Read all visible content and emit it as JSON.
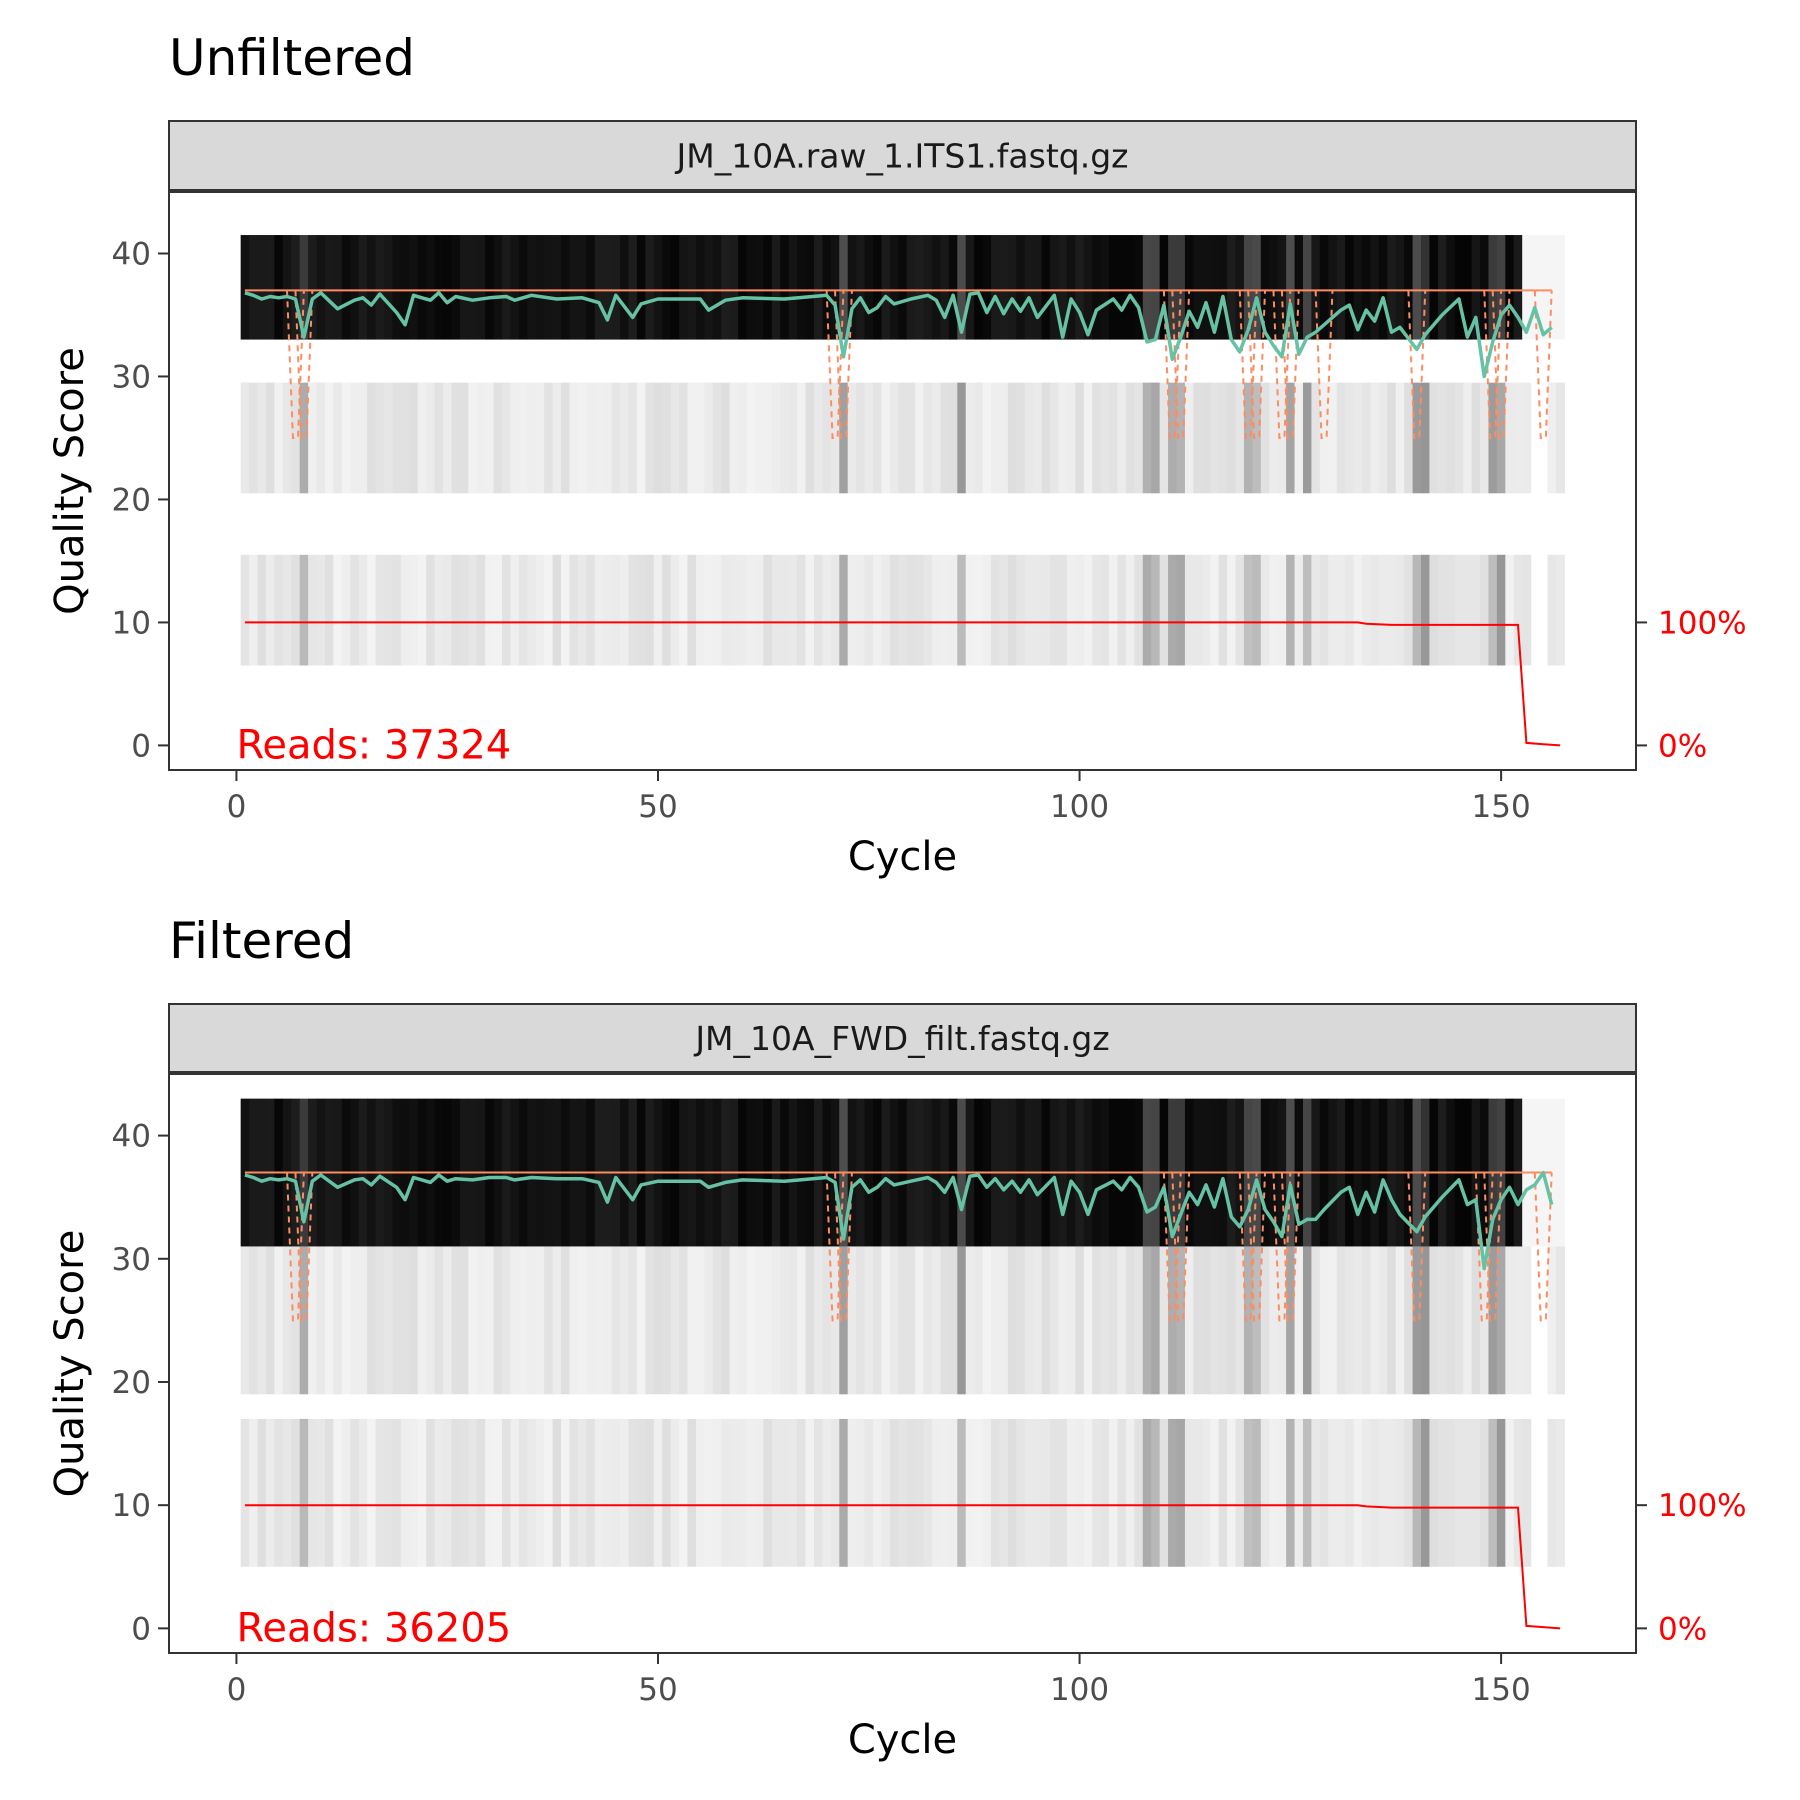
{
  "chart_data": [
    {
      "type": "line",
      "title": "Unfiltered",
      "facet_label": "JM_10A.raw_1.ITS1.fastq.gz",
      "xlabel": "Cycle",
      "ylabel": "Quality Score",
      "xlim": [
        -8,
        166
      ],
      "ylim": [
        -2,
        45
      ],
      "x_ticks": [
        "0",
        "50",
        "100",
        "150"
      ],
      "y_ticks": [
        "0",
        "10",
        "20",
        "30",
        "40"
      ],
      "secondary_axis_ticks": [
        "0%",
        "100%"
      ],
      "annotation": "Reads:  37324",
      "heatmap_bands": [
        [
          33,
          41.5
        ],
        [
          20.5,
          29.5
        ],
        [
          6.5,
          15.5
        ]
      ],
      "cycle_count": 157,
      "dim_cycles": [
        8,
        72,
        86,
        108,
        109,
        111,
        112,
        120,
        121,
        125,
        127,
        140,
        141,
        149,
        150
      ],
      "mean_quality": [
        [
          1,
          36.8
        ],
        [
          2,
          36.6
        ],
        [
          3,
          36.3
        ],
        [
          4,
          36.5
        ],
        [
          5,
          36.4
        ],
        [
          6,
          36.5
        ],
        [
          7,
          36.3
        ],
        [
          8,
          33.2
        ],
        [
          9,
          36.3
        ],
        [
          10,
          36.8
        ],
        [
          12,
          35.5
        ],
        [
          14,
          36.2
        ],
        [
          15,
          36.4
        ],
        [
          16,
          35.8
        ],
        [
          17,
          36.7
        ],
        [
          19,
          35.2
        ],
        [
          20,
          34.2
        ],
        [
          21,
          36.6
        ],
        [
          22,
          36.4
        ],
        [
          23,
          36.2
        ],
        [
          24,
          36.8
        ],
        [
          25,
          36.0
        ],
        [
          26,
          36.5
        ],
        [
          28,
          36.2
        ],
        [
          30,
          36.4
        ],
        [
          32,
          36.5
        ],
        [
          33,
          36.2
        ],
        [
          35,
          36.6
        ],
        [
          38,
          36.3
        ],
        [
          41,
          36.4
        ],
        [
          43,
          36.0
        ],
        [
          44,
          34.6
        ],
        [
          45,
          36.6
        ],
        [
          47,
          34.8
        ],
        [
          48,
          35.9
        ],
        [
          50,
          36.3
        ],
        [
          55,
          36.3
        ],
        [
          56,
          35.4
        ],
        [
          58,
          36.2
        ],
        [
          60,
          36.4
        ],
        [
          65,
          36.3
        ],
        [
          70,
          36.6
        ],
        [
          71,
          35.8
        ],
        [
          72,
          31.6
        ],
        [
          73,
          35.5
        ],
        [
          74,
          36.4
        ],
        [
          75,
          35.2
        ],
        [
          76,
          35.6
        ],
        [
          77,
          36.5
        ],
        [
          78,
          35.9
        ],
        [
          80,
          36.3
        ],
        [
          82,
          36.6
        ],
        [
          83,
          36.2
        ],
        [
          84,
          34.8
        ],
        [
          85,
          36.6
        ],
        [
          86,
          33.6
        ],
        [
          87,
          36.7
        ],
        [
          88,
          36.8
        ],
        [
          89,
          35.2
        ],
        [
          90,
          36.5
        ],
        [
          91,
          35.1
        ],
        [
          92,
          36.3
        ],
        [
          93,
          35.3
        ],
        [
          94,
          36.4
        ],
        [
          95,
          34.8
        ],
        [
          97,
          36.6
        ],
        [
          98,
          33.2
        ],
        [
          99,
          36.3
        ],
        [
          100,
          35.2
        ],
        [
          101,
          33.4
        ],
        [
          102,
          35.4
        ],
        [
          104,
          36.3
        ],
        [
          105,
          35.4
        ],
        [
          106,
          36.6
        ],
        [
          107,
          35.6
        ],
        [
          108,
          32.8
        ],
        [
          109,
          33.0
        ],
        [
          110,
          35.8
        ],
        [
          111,
          31.4
        ],
        [
          112,
          33.2
        ],
        [
          113,
          35.3
        ],
        [
          114,
          34.0
        ],
        [
          115,
          36.0
        ],
        [
          116,
          33.6
        ],
        [
          117,
          36.5
        ],
        [
          118,
          33.0
        ],
        [
          119,
          32.0
        ],
        [
          120,
          33.8
        ],
        [
          121,
          36.4
        ],
        [
          122,
          33.6
        ],
        [
          123,
          32.5
        ],
        [
          124,
          31.6
        ],
        [
          125,
          35.9
        ],
        [
          126,
          31.8
        ],
        [
          127,
          33.2
        ],
        [
          128,
          33.6
        ],
        [
          129,
          34.2
        ],
        [
          131,
          35.4
        ],
        [
          132,
          35.8
        ],
        [
          133,
          33.8
        ],
        [
          134,
          35.4
        ],
        [
          135,
          34.5
        ],
        [
          136,
          36.4
        ],
        [
          137,
          33.6
        ],
        [
          138,
          34.0
        ],
        [
          140,
          32.2
        ],
        [
          141,
          33.4
        ],
        [
          143,
          35.0
        ],
        [
          145,
          36.3
        ],
        [
          146,
          33.2
        ],
        [
          147,
          34.8
        ],
        [
          148,
          30.0
        ],
        [
          149,
          32.8
        ],
        [
          150,
          35.0
        ],
        [
          151,
          35.8
        ],
        [
          152,
          34.8
        ],
        [
          153,
          33.6
        ],
        [
          154,
          35.6
        ],
        [
          155,
          33.4
        ],
        [
          156,
          34.0
        ]
      ],
      "median_quality": [
        [
          1,
          37
        ],
        [
          156,
          37
        ]
      ],
      "quantile_dips": [
        [
          7,
          37,
          25
        ],
        [
          8,
          37,
          25
        ],
        [
          71,
          37,
          25
        ],
        [
          72,
          37,
          25
        ],
        [
          111,
          37,
          25
        ],
        [
          112,
          37,
          25
        ],
        [
          120,
          37,
          25
        ],
        [
          121,
          37,
          25
        ],
        [
          124,
          37,
          25
        ],
        [
          125,
          37,
          25
        ],
        [
          129,
          37,
          25
        ],
        [
          140,
          37,
          25
        ],
        [
          149,
          37,
          25
        ],
        [
          150,
          37,
          25
        ],
        [
          155,
          37,
          25
        ]
      ],
      "read_fraction": [
        [
          1,
          100
        ],
        [
          133,
          100
        ],
        [
          134,
          99
        ],
        [
          137,
          98
        ],
        [
          152,
          98
        ],
        [
          153,
          2
        ],
        [
          155,
          1
        ],
        [
          157,
          0
        ]
      ]
    },
    {
      "type": "line",
      "title": "Filtered",
      "facet_label": "JM_10A_FWD_filt.fastq.gz",
      "xlabel": "Cycle",
      "ylabel": "Quality Score",
      "xlim": [
        -8,
        166
      ],
      "ylim": [
        -2,
        45
      ],
      "x_ticks": [
        "0",
        "50",
        "100",
        "150"
      ],
      "y_ticks": [
        "0",
        "10",
        "20",
        "30",
        "40"
      ],
      "secondary_axis_ticks": [
        "0%",
        "100%"
      ],
      "annotation": "Reads:  36205",
      "heatmap_bands": [
        [
          31,
          43
        ],
        [
          19,
          31
        ],
        [
          5,
          17
        ]
      ],
      "cycle_count": 157,
      "dim_cycles": [
        8,
        72,
        86,
        108,
        109,
        111,
        112,
        120,
        121,
        125,
        127,
        140,
        141,
        149,
        150
      ],
      "mean_quality": [
        [
          1,
          36.8
        ],
        [
          2,
          36.6
        ],
        [
          3,
          36.3
        ],
        [
          4,
          36.5
        ],
        [
          5,
          36.4
        ],
        [
          6,
          36.5
        ],
        [
          7,
          36.3
        ],
        [
          8,
          33.0
        ],
        [
          9,
          36.3
        ],
        [
          10,
          36.8
        ],
        [
          12,
          35.8
        ],
        [
          14,
          36.4
        ],
        [
          15,
          36.5
        ],
        [
          16,
          36.0
        ],
        [
          17,
          36.7
        ],
        [
          19,
          35.8
        ],
        [
          20,
          34.8
        ],
        [
          21,
          36.6
        ],
        [
          22,
          36.4
        ],
        [
          23,
          36.2
        ],
        [
          24,
          36.8
        ],
        [
          25,
          36.3
        ],
        [
          26,
          36.5
        ],
        [
          28,
          36.4
        ],
        [
          30,
          36.6
        ],
        [
          32,
          36.6
        ],
        [
          33,
          36.4
        ],
        [
          35,
          36.6
        ],
        [
          38,
          36.5
        ],
        [
          41,
          36.5
        ],
        [
          43,
          36.2
        ],
        [
          44,
          34.6
        ],
        [
          45,
          36.6
        ],
        [
          47,
          34.8
        ],
        [
          48,
          36.0
        ],
        [
          50,
          36.3
        ],
        [
          55,
          36.3
        ],
        [
          56,
          35.8
        ],
        [
          58,
          36.2
        ],
        [
          60,
          36.4
        ],
        [
          65,
          36.3
        ],
        [
          70,
          36.6
        ],
        [
          71,
          36.2
        ],
        [
          72,
          31.6
        ],
        [
          73,
          35.8
        ],
        [
          74,
          36.4
        ],
        [
          75,
          35.4
        ],
        [
          76,
          35.8
        ],
        [
          77,
          36.5
        ],
        [
          78,
          36.0
        ],
        [
          80,
          36.3
        ],
        [
          82,
          36.6
        ],
        [
          83,
          36.2
        ],
        [
          84,
          35.4
        ],
        [
          85,
          36.6
        ],
        [
          86,
          34.0
        ],
        [
          87,
          36.7
        ],
        [
          88,
          36.8
        ],
        [
          89,
          35.8
        ],
        [
          90,
          36.5
        ],
        [
          91,
          35.6
        ],
        [
          92,
          36.3
        ],
        [
          93,
          35.4
        ],
        [
          94,
          36.4
        ],
        [
          95,
          35.2
        ],
        [
          97,
          36.6
        ],
        [
          98,
          33.6
        ],
        [
          99,
          36.3
        ],
        [
          100,
          35.4
        ],
        [
          101,
          33.6
        ],
        [
          102,
          35.6
        ],
        [
          104,
          36.3
        ],
        [
          105,
          35.6
        ],
        [
          106,
          36.6
        ],
        [
          107,
          35.8
        ],
        [
          108,
          33.8
        ],
        [
          109,
          34.2
        ],
        [
          110,
          35.8
        ],
        [
          111,
          31.8
        ],
        [
          112,
          33.6
        ],
        [
          113,
          35.4
        ],
        [
          114,
          34.4
        ],
        [
          115,
          36.0
        ],
        [
          116,
          34.2
        ],
        [
          117,
          36.5
        ],
        [
          118,
          33.4
        ],
        [
          119,
          32.6
        ],
        [
          120,
          34.0
        ],
        [
          121,
          36.4
        ],
        [
          122,
          34.0
        ],
        [
          123,
          33.0
        ],
        [
          124,
          31.8
        ],
        [
          125,
          36.0
        ],
        [
          126,
          32.8
        ],
        [
          127,
          33.2
        ],
        [
          128,
          33.2
        ],
        [
          129,
          34.0
        ],
        [
          131,
          35.4
        ],
        [
          132,
          35.8
        ],
        [
          133,
          33.6
        ],
        [
          134,
          35.4
        ],
        [
          135,
          33.8
        ],
        [
          136,
          36.4
        ],
        [
          137,
          34.8
        ],
        [
          138,
          33.6
        ],
        [
          140,
          32.2
        ],
        [
          141,
          33.4
        ],
        [
          143,
          35.0
        ],
        [
          145,
          36.4
        ],
        [
          146,
          34.4
        ],
        [
          147,
          34.8
        ],
        [
          148,
          29.2
        ],
        [
          149,
          33.2
        ],
        [
          150,
          34.8
        ],
        [
          151,
          35.8
        ],
        [
          152,
          34.4
        ],
        [
          153,
          35.6
        ],
        [
          154,
          36.0
        ],
        [
          155,
          37.0
        ],
        [
          156,
          34.4
        ]
      ],
      "median_quality": [
        [
          1,
          37
        ],
        [
          156,
          37
        ]
      ],
      "quantile_dips": [
        [
          7,
          37,
          25
        ],
        [
          8,
          37,
          25
        ],
        [
          71,
          37,
          25
        ],
        [
          72,
          37,
          25
        ],
        [
          111,
          37,
          25
        ],
        [
          112,
          37,
          25
        ],
        [
          120,
          37,
          25
        ],
        [
          121,
          37,
          25
        ],
        [
          124,
          37,
          25
        ],
        [
          125,
          37,
          25
        ],
        [
          140,
          37,
          25
        ],
        [
          148,
          37,
          25
        ],
        [
          149,
          37,
          25
        ],
        [
          155,
          37,
          25
        ]
      ],
      "read_fraction": [
        [
          1,
          100
        ],
        [
          133,
          100
        ],
        [
          134,
          99
        ],
        [
          137,
          98
        ],
        [
          152,
          98
        ],
        [
          153,
          2
        ],
        [
          155,
          1
        ],
        [
          157,
          0
        ]
      ]
    }
  ],
  "colors": {
    "mean_line": "#66c2a5",
    "median_line": "#fc8d62",
    "read_fraction": "#ff0000",
    "strip_fill": "#d9d9d9",
    "text_dark": "#1a1a1a",
    "tick_text": "#4d4d4d"
  }
}
